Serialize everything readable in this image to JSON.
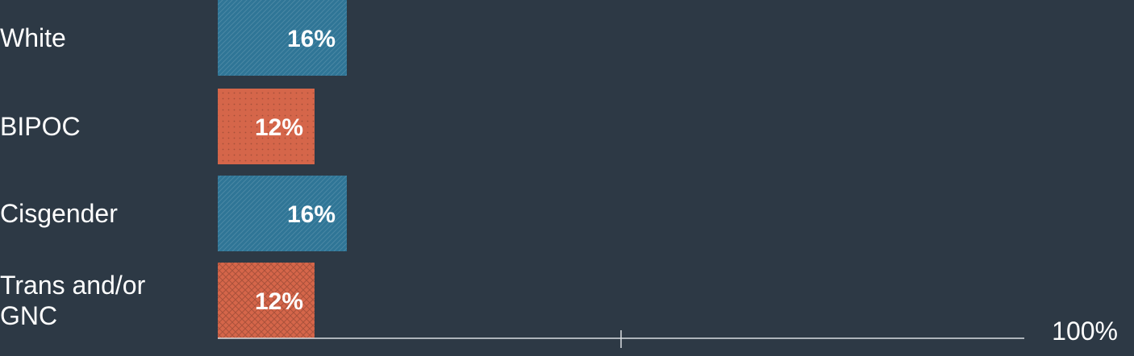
{
  "chart_data": {
    "type": "bar",
    "orientation": "horizontal",
    "categories": [
      [
        "White"
      ],
      [
        "BIPOC"
      ],
      [
        "Cisgender"
      ],
      [
        "Trans and/or",
        "GNC"
      ]
    ],
    "values": [
      16,
      12,
      16,
      12
    ],
    "value_labels": [
      "16%",
      "12%",
      "16%",
      "12%"
    ],
    "bar_colors": [
      "#2f7596",
      "#d5664a",
      "#2f7596",
      "#d5664a"
    ],
    "bar_patterns": [
      "diagonal-hatch",
      "dots",
      "diagonal-hatch",
      "crosshatch"
    ],
    "xlim": [
      0,
      100
    ],
    "axis_max_label": "100%",
    "title": "",
    "xlabel": "",
    "ylabel": "",
    "grid": false
  },
  "colors": {
    "background": "#2d3945",
    "axis": "#d9dde1",
    "text": "#ffffff"
  }
}
